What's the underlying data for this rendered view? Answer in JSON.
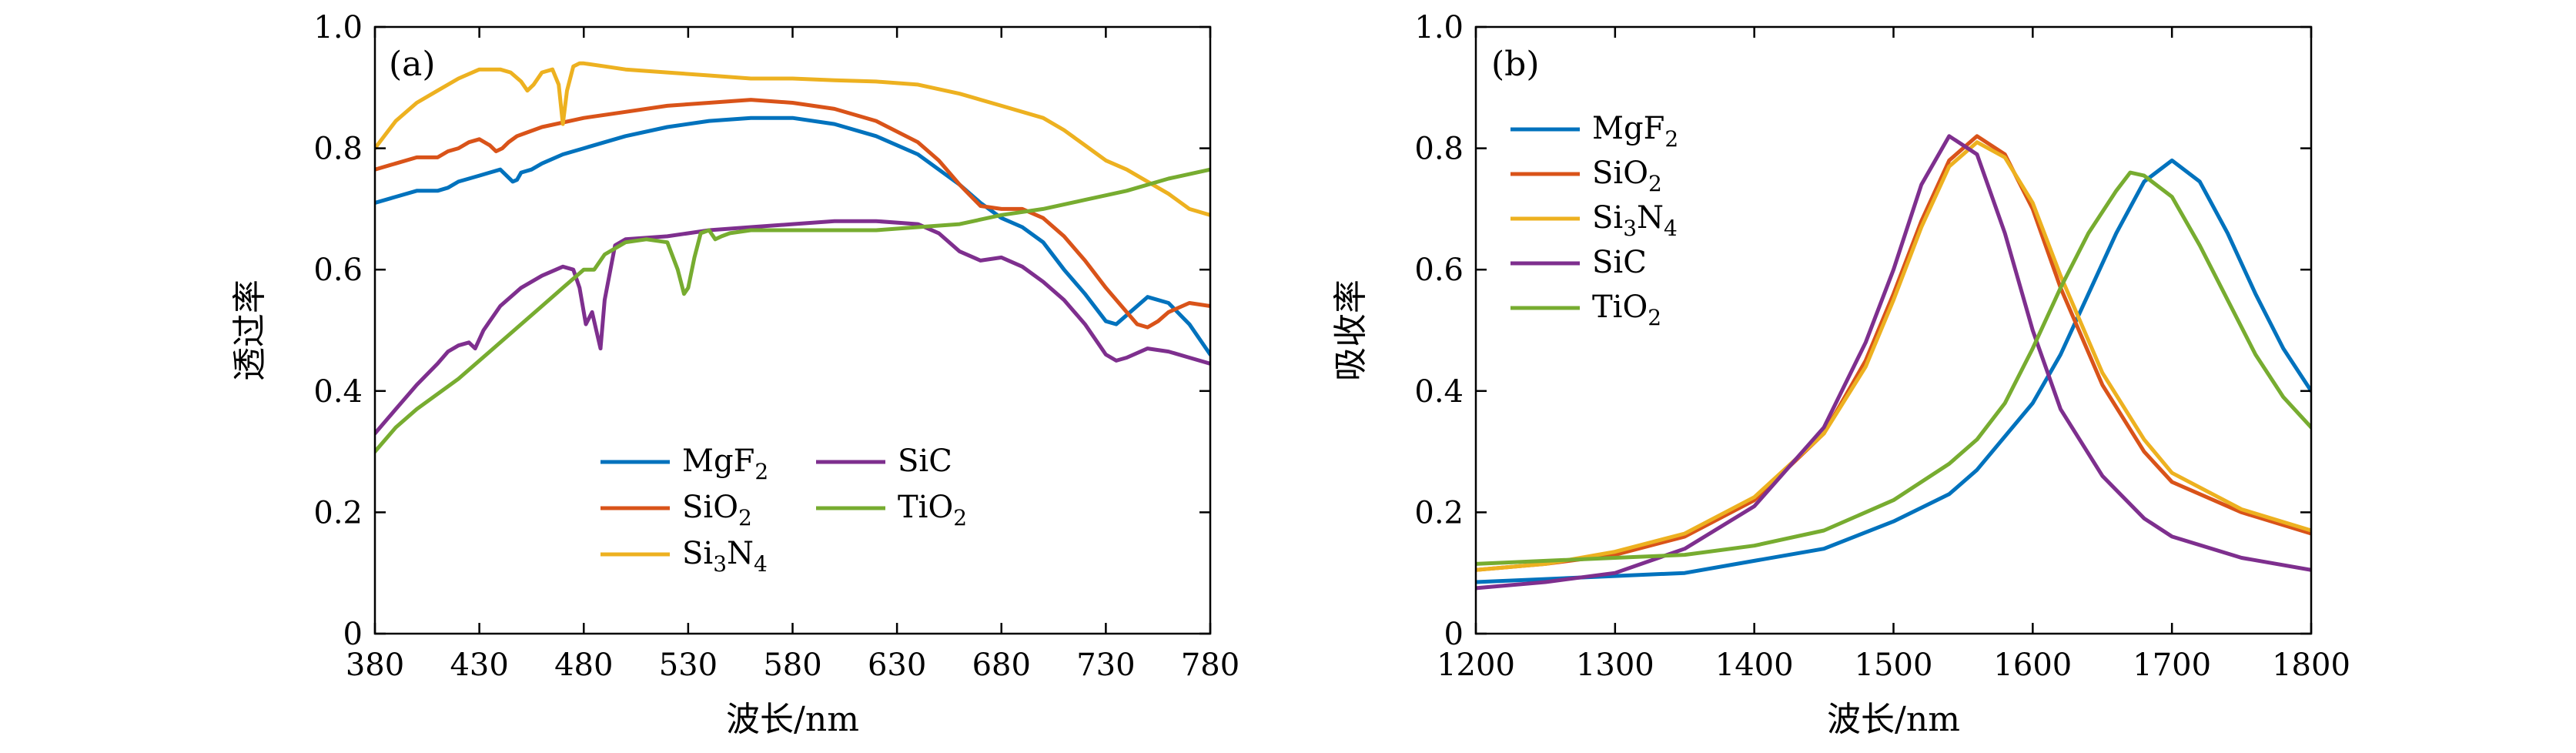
{
  "chart_data": [
    {
      "type": "line",
      "panel_label": "(a)",
      "xlabel": "波长/nm",
      "ylabel": "透过率",
      "xlim": [
        380,
        780
      ],
      "ylim": [
        0,
        1.0
      ],
      "xticks": [
        380,
        430,
        480,
        530,
        580,
        630,
        680,
        730,
        780
      ],
      "xtick_labels": [
        "380",
        "430",
        "480",
        "530",
        "580",
        "630",
        "680",
        "730",
        "780"
      ],
      "yticks": [
        0,
        0.2,
        0.4,
        0.6,
        0.8,
        1.0
      ],
      "ytick_labels": [
        "0",
        "0.2",
        "0.4",
        "0.6",
        "0.8",
        "1.0"
      ],
      "grid": false,
      "legend_position": "bottom-center",
      "series": [
        {
          "name": "MgF2",
          "legend_base": "MgF",
          "legend_sub": "2",
          "color": "#0072BD",
          "x": [
            380,
            390,
            400,
            410,
            415,
            420,
            425,
            430,
            435,
            440,
            443,
            446,
            448,
            450,
            455,
            460,
            470,
            480,
            490,
            500,
            520,
            540,
            560,
            580,
            600,
            620,
            640,
            660,
            670,
            680,
            690,
            700,
            710,
            720,
            730,
            735,
            740,
            750,
            760,
            770,
            780
          ],
          "y": [
            0.71,
            0.72,
            0.73,
            0.73,
            0.735,
            0.745,
            0.75,
            0.755,
            0.76,
            0.765,
            0.755,
            0.745,
            0.748,
            0.76,
            0.765,
            0.775,
            0.79,
            0.8,
            0.81,
            0.82,
            0.835,
            0.845,
            0.85,
            0.85,
            0.84,
            0.82,
            0.79,
            0.74,
            0.71,
            0.685,
            0.67,
            0.645,
            0.6,
            0.56,
            0.515,
            0.51,
            0.525,
            0.555,
            0.545,
            0.51,
            0.46
          ]
        },
        {
          "name": "SiO2",
          "legend_base": "SiO",
          "legend_sub": "2",
          "color": "#D95319",
          "x": [
            380,
            390,
            400,
            410,
            415,
            420,
            425,
            430,
            435,
            438,
            441,
            444,
            448,
            452,
            460,
            480,
            500,
            520,
            540,
            560,
            580,
            600,
            620,
            640,
            650,
            660,
            670,
            680,
            690,
            700,
            710,
            720,
            730,
            740,
            745,
            750,
            755,
            760,
            770,
            780
          ],
          "y": [
            0.765,
            0.775,
            0.785,
            0.785,
            0.795,
            0.8,
            0.81,
            0.815,
            0.805,
            0.795,
            0.8,
            0.81,
            0.82,
            0.825,
            0.835,
            0.85,
            0.86,
            0.87,
            0.875,
            0.88,
            0.875,
            0.865,
            0.845,
            0.81,
            0.78,
            0.74,
            0.705,
            0.7,
            0.7,
            0.685,
            0.655,
            0.615,
            0.57,
            0.53,
            0.51,
            0.505,
            0.515,
            0.53,
            0.545,
            0.54
          ]
        },
        {
          "name": "Si3N4",
          "legend_base": "Si",
          "legend_sub": "3",
          "legend_mid": "N",
          "legend_sub2": "4",
          "color": "#EDB120",
          "x": [
            380,
            390,
            400,
            410,
            420,
            430,
            440,
            445,
            450,
            453,
            456,
            460,
            465,
            468,
            470,
            472,
            475,
            478,
            480,
            490,
            500,
            520,
            540,
            560,
            580,
            600,
            620,
            640,
            660,
            680,
            700,
            710,
            720,
            730,
            740,
            750,
            760,
            770,
            780
          ],
          "y": [
            0.8,
            0.845,
            0.875,
            0.895,
            0.915,
            0.93,
            0.93,
            0.925,
            0.91,
            0.895,
            0.905,
            0.925,
            0.93,
            0.905,
            0.84,
            0.895,
            0.935,
            0.94,
            0.94,
            0.935,
            0.93,
            0.925,
            0.92,
            0.915,
            0.915,
            0.912,
            0.91,
            0.905,
            0.89,
            0.87,
            0.85,
            0.83,
            0.805,
            0.78,
            0.765,
            0.745,
            0.725,
            0.7,
            0.69
          ]
        },
        {
          "name": "SiC",
          "legend_base": "SiC",
          "color": "#7E2F8E",
          "x": [
            380,
            390,
            400,
            410,
            415,
            420,
            425,
            428,
            432,
            440,
            450,
            460,
            470,
            475,
            478,
            481,
            484,
            486,
            488,
            490,
            495,
            500,
            520,
            540,
            560,
            580,
            600,
            620,
            640,
            650,
            660,
            670,
            680,
            690,
            700,
            710,
            720,
            730,
            735,
            740,
            750,
            760,
            770,
            780
          ],
          "y": [
            0.33,
            0.37,
            0.41,
            0.445,
            0.465,
            0.475,
            0.48,
            0.47,
            0.5,
            0.54,
            0.57,
            0.59,
            0.605,
            0.6,
            0.57,
            0.51,
            0.53,
            0.5,
            0.47,
            0.55,
            0.64,
            0.65,
            0.655,
            0.665,
            0.67,
            0.675,
            0.68,
            0.68,
            0.675,
            0.66,
            0.63,
            0.615,
            0.62,
            0.605,
            0.58,
            0.55,
            0.51,
            0.46,
            0.45,
            0.455,
            0.47,
            0.465,
            0.455,
            0.445
          ]
        },
        {
          "name": "TiO2",
          "legend_base": "TiO",
          "legend_sub": "2",
          "color": "#77AC30",
          "x": [
            380,
            390,
            400,
            420,
            440,
            460,
            470,
            480,
            485,
            490,
            500,
            510,
            520,
            525,
            528,
            530,
            533,
            536,
            540,
            543,
            546,
            550,
            560,
            580,
            600,
            620,
            640,
            660,
            680,
            700,
            720,
            740,
            760,
            780
          ],
          "y": [
            0.3,
            0.34,
            0.37,
            0.42,
            0.48,
            0.54,
            0.57,
            0.6,
            0.6,
            0.625,
            0.645,
            0.65,
            0.645,
            0.6,
            0.56,
            0.57,
            0.62,
            0.66,
            0.665,
            0.65,
            0.655,
            0.66,
            0.665,
            0.665,
            0.665,
            0.665,
            0.67,
            0.675,
            0.69,
            0.7,
            0.715,
            0.73,
            0.75,
            0.765
          ]
        }
      ]
    },
    {
      "type": "line",
      "panel_label": "(b)",
      "xlabel": "波长/nm",
      "ylabel": "吸收率",
      "xlim": [
        1200,
        1800
      ],
      "ylim": [
        0,
        1.0
      ],
      "xticks": [
        1200,
        1300,
        1400,
        1500,
        1600,
        1700,
        1800
      ],
      "xtick_labels": [
        "1200",
        "1300",
        "1400",
        "1500",
        "1600",
        "1700",
        "1800"
      ],
      "yticks": [
        0,
        0.2,
        0.4,
        0.6,
        0.8,
        1.0
      ],
      "ytick_labels": [
        "0",
        "0.2",
        "0.4",
        "0.6",
        "0.8",
        "1.0"
      ],
      "grid": false,
      "legend_position": "top-left",
      "series": [
        {
          "name": "MgF2",
          "legend_base": "MgF",
          "legend_sub": "2",
          "color": "#0072BD",
          "x": [
            1200,
            1250,
            1300,
            1350,
            1400,
            1450,
            1500,
            1540,
            1560,
            1600,
            1620,
            1640,
            1660,
            1680,
            1700,
            1720,
            1740,
            1760,
            1780,
            1800
          ],
          "y": [
            0.085,
            0.09,
            0.095,
            0.1,
            0.12,
            0.14,
            0.185,
            0.23,
            0.27,
            0.38,
            0.46,
            0.56,
            0.66,
            0.745,
            0.78,
            0.745,
            0.66,
            0.56,
            0.47,
            0.4
          ]
        },
        {
          "name": "SiO2",
          "legend_base": "SiO",
          "legend_sub": "2",
          "color": "#D95319",
          "x": [
            1200,
            1250,
            1300,
            1350,
            1400,
            1450,
            1480,
            1500,
            1520,
            1540,
            1560,
            1580,
            1600,
            1620,
            1650,
            1680,
            1700,
            1750,
            1800
          ],
          "y": [
            0.105,
            0.115,
            0.13,
            0.16,
            0.22,
            0.33,
            0.45,
            0.56,
            0.68,
            0.78,
            0.82,
            0.79,
            0.7,
            0.57,
            0.41,
            0.3,
            0.25,
            0.2,
            0.165
          ]
        },
        {
          "name": "Si3N4",
          "legend_base": "Si",
          "legend_sub": "3",
          "legend_mid": "N",
          "legend_sub2": "4",
          "color": "#EDB120",
          "x": [
            1200,
            1250,
            1300,
            1350,
            1400,
            1450,
            1480,
            1500,
            1520,
            1540,
            1560,
            1580,
            1600,
            1620,
            1650,
            1680,
            1700,
            1750,
            1800
          ],
          "y": [
            0.105,
            0.115,
            0.135,
            0.165,
            0.225,
            0.33,
            0.44,
            0.55,
            0.67,
            0.77,
            0.81,
            0.785,
            0.71,
            0.59,
            0.43,
            0.32,
            0.265,
            0.205,
            0.17
          ]
        },
        {
          "name": "SiC",
          "legend_base": "SiC",
          "color": "#7E2F8E",
          "x": [
            1200,
            1250,
            1300,
            1350,
            1400,
            1450,
            1480,
            1500,
            1520,
            1540,
            1560,
            1580,
            1600,
            1620,
            1650,
            1680,
            1700,
            1750,
            1800
          ],
          "y": [
            0.075,
            0.085,
            0.1,
            0.14,
            0.21,
            0.34,
            0.48,
            0.6,
            0.74,
            0.82,
            0.79,
            0.66,
            0.5,
            0.37,
            0.26,
            0.19,
            0.16,
            0.125,
            0.105
          ]
        },
        {
          "name": "TiO2",
          "legend_base": "TiO",
          "legend_sub": "2",
          "color": "#77AC30",
          "x": [
            1200,
            1250,
            1300,
            1350,
            1400,
            1450,
            1500,
            1540,
            1560,
            1580,
            1600,
            1620,
            1640,
            1660,
            1670,
            1680,
            1700,
            1720,
            1740,
            1760,
            1780,
            1800
          ],
          "y": [
            0.115,
            0.12,
            0.125,
            0.13,
            0.145,
            0.17,
            0.22,
            0.28,
            0.32,
            0.38,
            0.47,
            0.57,
            0.66,
            0.73,
            0.76,
            0.755,
            0.72,
            0.64,
            0.55,
            0.46,
            0.39,
            0.34
          ]
        }
      ]
    }
  ]
}
